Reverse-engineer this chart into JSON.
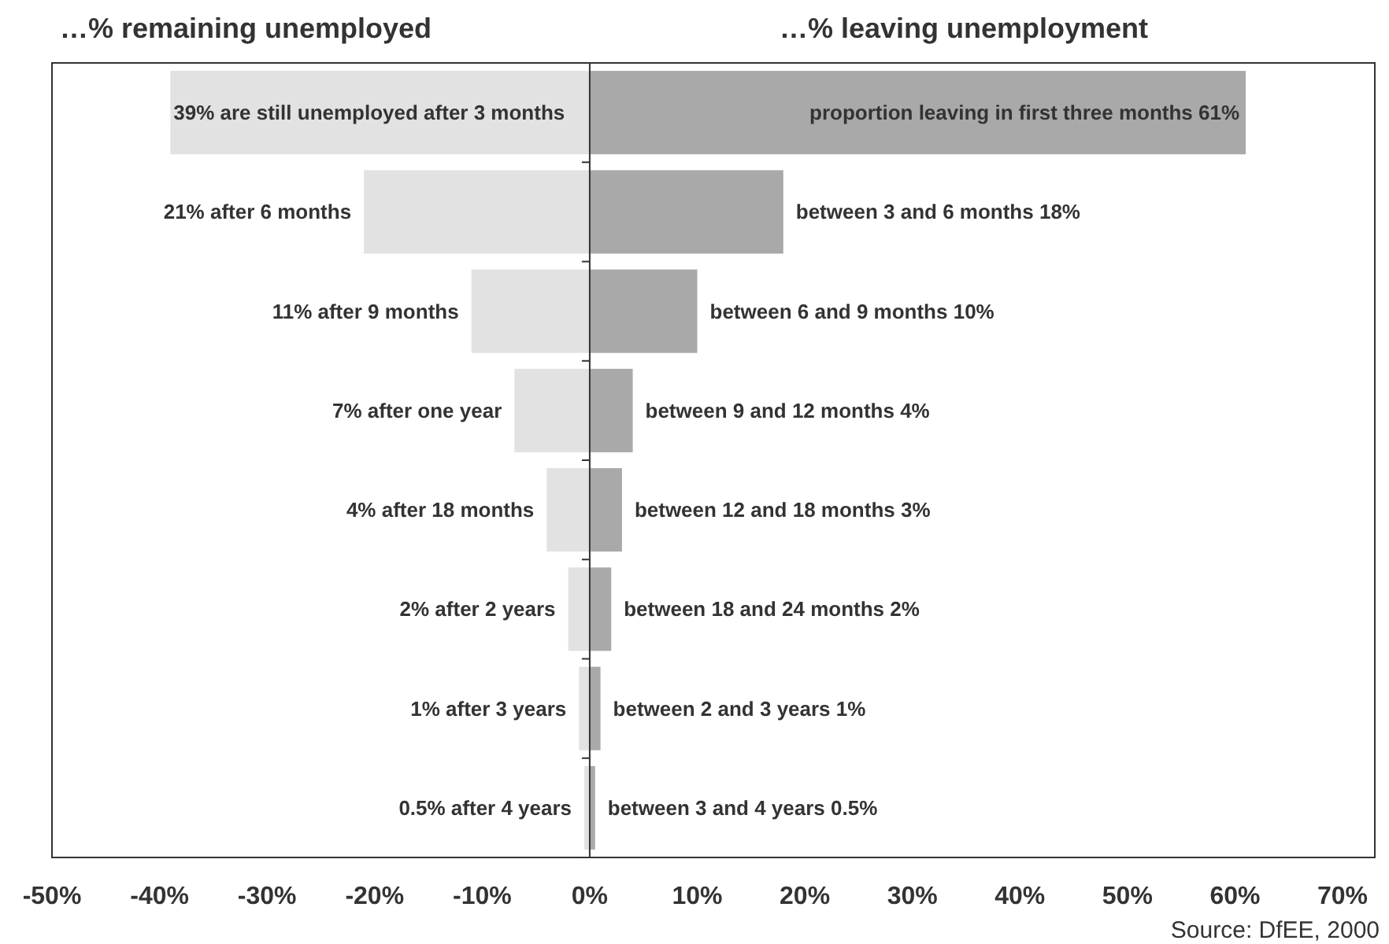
{
  "chart_data": {
    "type": "bar",
    "orientation": "horizontal",
    "ref_lines": [
      {
        "axis": "x",
        "value": 0,
        "color": "#333333"
      }
    ],
    "categories": [
      null,
      null,
      null,
      null,
      null,
      null,
      null,
      null
    ],
    "series": [
      {
        "color": "#e2e2e2",
        "base": [
          -39,
          -21,
          -11,
          -7,
          -4,
          -2,
          -1,
          -0.5
        ],
        "values": [
          39,
          21,
          11,
          7,
          4,
          2,
          1,
          0.5
        ],
        "value_labels": [
          "39% are still unemployed after 3 months",
          "21%  after 6 months",
          "11%  after 9 months",
          "7%  after one year",
          "4%  after 18 months",
          "2%  after 2 years",
          "1%  after 3 years",
          "0.5%  after 4 years"
        ]
      },
      {
        "color": "#a9a9a9",
        "values": [
          61,
          18,
          10,
          4,
          3,
          2,
          1,
          0.5
        ],
        "value_labels": [
          "proportion leaving in first three months  61%",
          "between 3 and 6 months  18%",
          "between 6 and 9 months  10%",
          "between 9 and 12 months  4%",
          "between 12 and 18 months  3%",
          "between 18 and 24 months  2%",
          "between 2 and 3 years   1%",
          "between 3 and 4 years  0.5%"
        ]
      }
    ],
    "xlim": [
      -50,
      73
    ],
    "xticks": [
      {
        "value": -50,
        "label": "-50%"
      },
      {
        "value": -40,
        "label": "-40%"
      },
      {
        "value": -30,
        "label": "-30%"
      },
      {
        "value": -20,
        "label": "-20%"
      },
      {
        "value": -10,
        "label": "-10%"
      },
      {
        "value": 0,
        "label": "0%"
      },
      {
        "value": 10,
        "label": "10%"
      },
      {
        "value": 20,
        "label": "20%"
      },
      {
        "value": 30,
        "label": "30%"
      },
      {
        "value": 40,
        "label": "40%"
      },
      {
        "value": 50,
        "label": "50%"
      },
      {
        "value": 60,
        "label": "60%"
      },
      {
        "value": 70,
        "label": "70%"
      }
    ],
    "tick_labels": "x",
    "annotations": [
      "…% remaining unemployed",
      "…% leaving unemployment",
      "Source: DfEE, 2000"
    ]
  }
}
